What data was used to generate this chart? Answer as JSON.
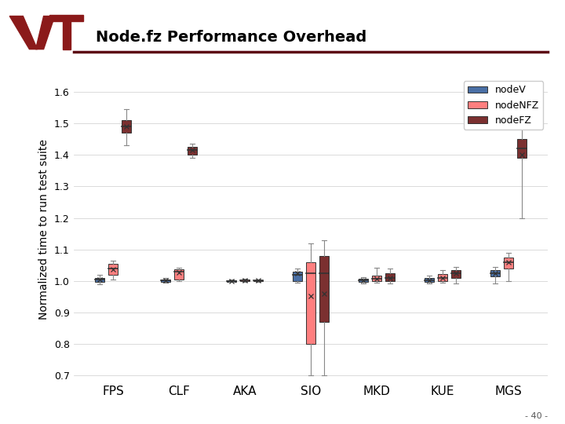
{
  "title": "Node.fz Performance Overhead",
  "ylabel": "Normalized time to run test suite",
  "categories": [
    "FPS",
    "CLF",
    "AKA",
    "SIO",
    "MKD",
    "KUE",
    "MGS"
  ],
  "ylim": [
    0.68,
    1.65
  ],
  "yticks": [
    0.7,
    0.8,
    0.9,
    1.0,
    1.1,
    1.2,
    1.3,
    1.4,
    1.5,
    1.6
  ],
  "colors": {
    "nodeV": "#4a6fa5",
    "nodeNFZ": "#ff7f7f",
    "nodeFZ": "#7b3030"
  },
  "legend_labels": [
    "nodeV",
    "nodeNFZ",
    "nodeFZ"
  ],
  "title_line_color": "#5c0a14",
  "footer": "- 40 -",
  "box_data": {
    "nodeV": {
      "FPS": {
        "whislo": 0.99,
        "q1": 0.997,
        "med": 1.005,
        "q3": 1.01,
        "whishi": 1.02,
        "mean": 1.005
      },
      "CLF": {
        "whislo": 0.995,
        "q1": 0.998,
        "med": 1.002,
        "q3": 1.005,
        "whishi": 1.01,
        "mean": 1.002
      },
      "AKA": {
        "whislo": 0.996,
        "q1": 0.998,
        "med": 1.0,
        "q3": 1.002,
        "whishi": 1.004,
        "mean": 1.0
      },
      "SIO": {
        "whislo": 0.995,
        "q1": 1.0,
        "med": 1.02,
        "q3": 1.03,
        "whishi": 1.04,
        "mean": 1.025
      },
      "MKD": {
        "whislo": 0.993,
        "q1": 0.998,
        "med": 1.002,
        "q3": 1.007,
        "whishi": 1.013,
        "mean": 1.002
      },
      "KUE": {
        "whislo": 0.993,
        "q1": 0.997,
        "med": 1.003,
        "q3": 1.01,
        "whishi": 1.018,
        "mean": 1.003
      },
      "MGS": {
        "whislo": 0.993,
        "q1": 1.015,
        "med": 1.025,
        "q3": 1.035,
        "whishi": 1.045,
        "mean": 1.025
      }
    },
    "nodeNFZ": {
      "FPS": {
        "whislo": 1.005,
        "q1": 1.02,
        "med": 1.04,
        "q3": 1.055,
        "whishi": 1.065,
        "mean": 1.038
      },
      "CLF": {
        "whislo": 1.0,
        "q1": 1.005,
        "med": 1.03,
        "q3": 1.038,
        "whishi": 1.043,
        "mean": 1.028
      },
      "AKA": {
        "whislo": 0.997,
        "q1": 0.999,
        "med": 1.002,
        "q3": 1.004,
        "whishi": 1.006,
        "mean": 1.002
      },
      "SIO": {
        "whislo": 0.7,
        "q1": 0.8,
        "med": 1.025,
        "q3": 1.06,
        "whishi": 1.12,
        "mean": 0.952
      },
      "MKD": {
        "whislo": 0.995,
        "q1": 1.0,
        "med": 1.008,
        "q3": 1.018,
        "whishi": 1.042,
        "mean": 1.008
      },
      "KUE": {
        "whislo": 0.995,
        "q1": 1.0,
        "med": 1.01,
        "q3": 1.022,
        "whishi": 1.035,
        "mean": 1.01
      },
      "MGS": {
        "whislo": 1.0,
        "q1": 1.04,
        "med": 1.06,
        "q3": 1.075,
        "whishi": 1.09,
        "mean": 1.06
      }
    },
    "nodeFZ": {
      "FPS": {
        "whislo": 1.43,
        "q1": 1.47,
        "med": 1.49,
        "q3": 1.51,
        "whishi": 1.545,
        "mean": 1.49
      },
      "CLF": {
        "whislo": 1.39,
        "q1": 1.4,
        "med": 1.415,
        "q3": 1.425,
        "whishi": 1.435,
        "mean": 1.415
      },
      "AKA": {
        "whislo": 0.997,
        "q1": 0.999,
        "med": 1.001,
        "q3": 1.003,
        "whishi": 1.005,
        "mean": 1.001
      },
      "SIO": {
        "whislo": 0.7,
        "q1": 0.87,
        "med": 1.025,
        "q3": 1.08,
        "whishi": 1.13,
        "mean": 0.96
      },
      "MKD": {
        "whislo": 0.993,
        "q1": 1.0,
        "med": 1.01,
        "q3": 1.025,
        "whishi": 1.04,
        "mean": 1.01
      },
      "KUE": {
        "whislo": 0.993,
        "q1": 1.01,
        "med": 1.025,
        "q3": 1.035,
        "whishi": 1.045,
        "mean": 1.025
      },
      "MGS": {
        "whislo": 1.2,
        "q1": 1.39,
        "med": 1.42,
        "q3": 1.45,
        "whishi": 1.49,
        "mean": 1.4
      }
    }
  }
}
